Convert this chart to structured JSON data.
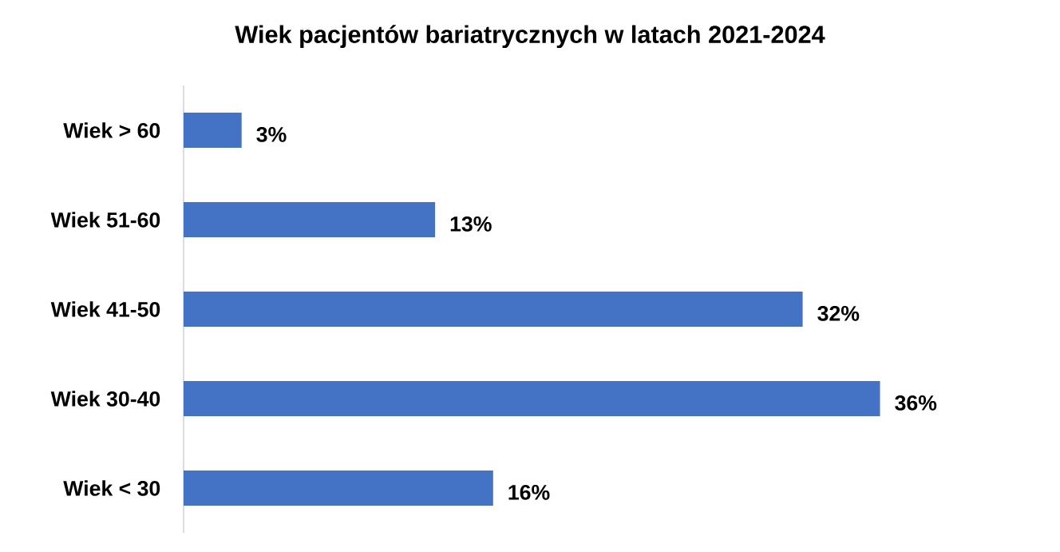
{
  "chart_data": {
    "type": "bar",
    "orientation": "horizontal",
    "title": "Wiek pacjentów bariatrycznych w latach 2021-2024",
    "categories": [
      "Wiek > 60",
      "Wiek 51-60",
      "Wiek 41-50",
      "Wiek 30-40",
      "Wiek < 30"
    ],
    "values": [
      3,
      13,
      32,
      36,
      16
    ],
    "value_labels": [
      "3%",
      "13%",
      "32%",
      "36%",
      "16%"
    ],
    "color": "#4472c4",
    "tick_labels": "y"
  }
}
